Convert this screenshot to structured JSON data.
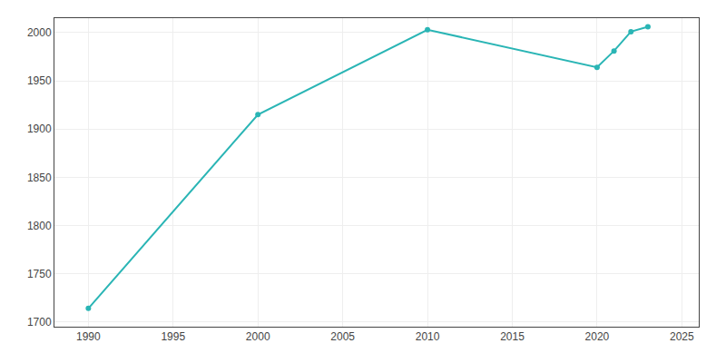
{
  "chart_data": {
    "type": "line",
    "x": [
      1990,
      2000,
      2010,
      2020,
      2021,
      2022,
      2023
    ],
    "values": [
      1714,
      1915,
      2003,
      1964,
      1981,
      2001,
      2006
    ],
    "color": "#2ab5b5",
    "marker": "circle",
    "xlim": [
      1988,
      2026
    ],
    "ylim": [
      1695,
      2015
    ],
    "xticks": [
      1990,
      1995,
      2000,
      2005,
      2010,
      2015,
      2020,
      2025
    ],
    "yticks": [
      1700,
      1750,
      1800,
      1850,
      1900,
      1950,
      2000
    ],
    "grid": true
  }
}
